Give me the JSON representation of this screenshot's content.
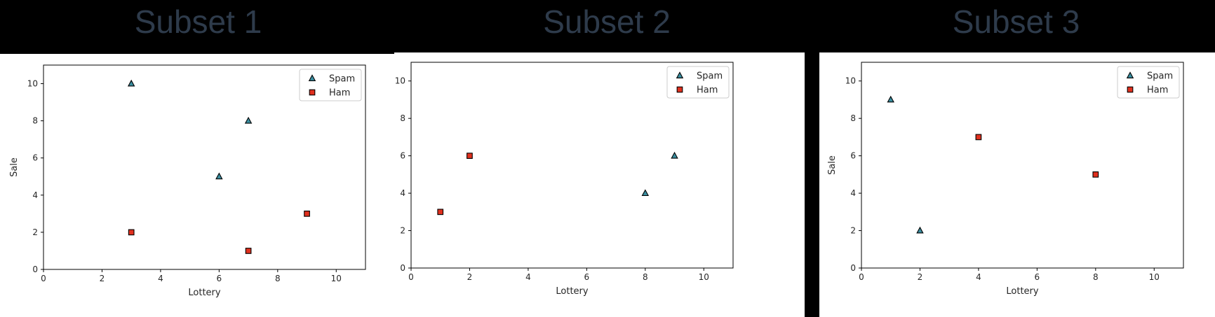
{
  "figure": {
    "background": "#000000",
    "title_color": "#2e3b4b"
  },
  "chart_data": [
    {
      "type": "scatter",
      "title": "Subset 1",
      "xlabel": "Lottery",
      "ylabel": "Sale",
      "xlim": [
        0,
        11
      ],
      "ylim": [
        0,
        11
      ],
      "xticks": [
        0,
        2,
        4,
        6,
        8,
        10
      ],
      "yticks": [
        0,
        2,
        4,
        6,
        8,
        10
      ],
      "grid": false,
      "legend_position": "top-right",
      "series": [
        {
          "name": "Spam",
          "marker": "triangle",
          "color": "#3a8ea0",
          "points": [
            {
              "x": 3,
              "y": 10
            },
            {
              "x": 7,
              "y": 8
            },
            {
              "x": 6,
              "y": 5
            }
          ]
        },
        {
          "name": "Ham",
          "marker": "square",
          "color": "#e0301e",
          "points": [
            {
              "x": 3,
              "y": 2
            },
            {
              "x": 7,
              "y": 1
            },
            {
              "x": 9,
              "y": 3
            }
          ]
        }
      ]
    },
    {
      "type": "scatter",
      "title": "Subset 2",
      "xlabel": "Lottery",
      "ylabel": "Sale",
      "xlim": [
        0,
        11
      ],
      "ylim": [
        0,
        11
      ],
      "xticks": [
        0,
        2,
        4,
        6,
        8,
        10
      ],
      "yticks": [
        0,
        2,
        4,
        6,
        8,
        10
      ],
      "grid": false,
      "legend_position": "top-right",
      "series": [
        {
          "name": "Spam",
          "marker": "triangle",
          "color": "#3a8ea0",
          "points": [
            {
              "x": 8,
              "y": 4
            },
            {
              "x": 9,
              "y": 6
            }
          ]
        },
        {
          "name": "Ham",
          "marker": "square",
          "color": "#e0301e",
          "points": [
            {
              "x": 1,
              "y": 3
            },
            {
              "x": 2,
              "y": 6
            }
          ]
        }
      ]
    },
    {
      "type": "scatter",
      "title": "Subset 3",
      "xlabel": "Lottery",
      "ylabel": "Sale",
      "xlim": [
        0,
        11
      ],
      "ylim": [
        0,
        11
      ],
      "xticks": [
        0,
        2,
        4,
        6,
        8,
        10
      ],
      "yticks": [
        0,
        2,
        4,
        6,
        8,
        10
      ],
      "grid": false,
      "legend_position": "top-right",
      "series": [
        {
          "name": "Spam",
          "marker": "triangle",
          "color": "#3a8ea0",
          "points": [
            {
              "x": 1,
              "y": 9
            },
            {
              "x": 2,
              "y": 2
            }
          ]
        },
        {
          "name": "Ham",
          "marker": "square",
          "color": "#e0301e",
          "points": [
            {
              "x": 4,
              "y": 7
            },
            {
              "x": 8,
              "y": 5
            }
          ]
        }
      ]
    }
  ]
}
